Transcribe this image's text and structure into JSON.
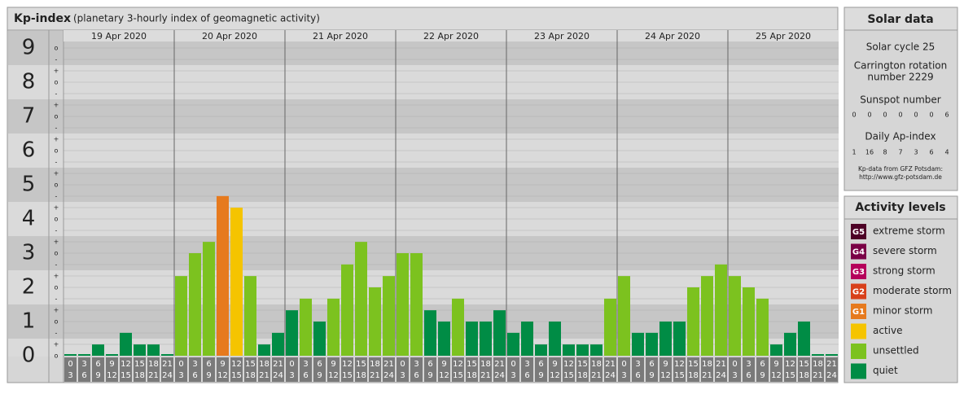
{
  "chart_data": {
    "type": "bar",
    "title": "Kp-index",
    "subtitle": "(planetary 3-hourly index of geomagnetic activity)",
    "ylim": [
      0,
      9
    ],
    "yticks": [
      0,
      1,
      2,
      3,
      4,
      5,
      6,
      7,
      8,
      9
    ],
    "minor_tick_labels": [
      "o",
      "+",
      "-"
    ],
    "hours": [
      [
        "0",
        "3"
      ],
      [
        "3",
        "6"
      ],
      [
        "6",
        "9"
      ],
      [
        "9",
        "12"
      ],
      [
        "12",
        "15"
      ],
      [
        "15",
        "18"
      ],
      [
        "18",
        "21"
      ],
      [
        "21",
        "24"
      ]
    ],
    "days": [
      {
        "date": "19 Apr 2020",
        "values": [
          0,
          0,
          0.33,
          0,
          0.67,
          0.33,
          0.33,
          0
        ],
        "colors": [
          "#008c45",
          "#008c45",
          "#008c45",
          "#008c45",
          "#008c45",
          "#008c45",
          "#008c45",
          "#008c45"
        ]
      },
      {
        "date": "20 Apr 2020",
        "values": [
          2.33,
          3,
          3.33,
          4.67,
          4.33,
          2.33,
          0.33,
          0.67
        ],
        "colors": [
          "#7cc21f",
          "#7cc21f",
          "#7cc21f",
          "#e67a1e",
          "#f5c400",
          "#7cc21f",
          "#008c45",
          "#008c45"
        ]
      },
      {
        "date": "21 Apr 2020",
        "values": [
          1.33,
          1.67,
          1,
          1.67,
          2.67,
          3.33,
          2,
          2.33
        ],
        "colors": [
          "#008c45",
          "#7cc21f",
          "#008c45",
          "#7cc21f",
          "#7cc21f",
          "#7cc21f",
          "#7cc21f",
          "#7cc21f"
        ]
      },
      {
        "date": "22 Apr 2020",
        "values": [
          3,
          3,
          1.33,
          1,
          1.67,
          1,
          1,
          1.33
        ],
        "colors": [
          "#7cc21f",
          "#7cc21f",
          "#008c45",
          "#008c45",
          "#7cc21f",
          "#008c45",
          "#008c45",
          "#008c45"
        ]
      },
      {
        "date": "23 Apr 2020",
        "values": [
          0.67,
          1,
          0.33,
          1,
          0.33,
          0.33,
          0.33,
          1.67
        ],
        "colors": [
          "#008c45",
          "#008c45",
          "#008c45",
          "#008c45",
          "#008c45",
          "#008c45",
          "#008c45",
          "#7cc21f"
        ]
      },
      {
        "date": "24 Apr 2020",
        "values": [
          2.33,
          0.67,
          0.67,
          1,
          1,
          2,
          2.33,
          2.67
        ],
        "colors": [
          "#7cc21f",
          "#008c45",
          "#008c45",
          "#008c45",
          "#008c45",
          "#7cc21f",
          "#7cc21f",
          "#7cc21f"
        ]
      },
      {
        "date": "25 Apr 2020",
        "values": [
          2.33,
          2,
          1.67,
          0.33,
          0.67,
          1,
          0,
          0
        ],
        "colors": [
          "#7cc21f",
          "#7cc21f",
          "#7cc21f",
          "#008c45",
          "#008c45",
          "#008c45",
          "#008c45",
          "#008c45"
        ]
      }
    ]
  },
  "solar_data": {
    "title": "Solar data",
    "solar_cycle": "Solar cycle 25",
    "carrington": [
      "Carrington rotation",
      "number 2229"
    ],
    "sunspot_title": "Sunspot number",
    "sunspot_numbers": [
      0,
      0,
      0,
      0,
      0,
      0,
      6
    ],
    "ap_title": "Daily Ap-index",
    "ap_values": [
      1,
      16,
      8,
      7,
      3,
      6,
      4
    ],
    "source": [
      "Kp-data from GFZ Potsdam:",
      "http://www.gfz-potsdam.de"
    ]
  },
  "activity_levels": {
    "title": "Activity levels",
    "items": [
      {
        "badge": "G5",
        "label": "extreme storm",
        "color": "#4d0026"
      },
      {
        "badge": "G4",
        "label": "severe storm",
        "color": "#7a0046"
      },
      {
        "badge": "G3",
        "label": "strong storm",
        "color": "#b5005b"
      },
      {
        "badge": "G2",
        "label": "moderate storm",
        "color": "#d8401a"
      },
      {
        "badge": "G1",
        "label": "minor storm",
        "color": "#e67a1e"
      },
      {
        "label": "active",
        "color": "#f5c400"
      },
      {
        "label": "unsettled",
        "color": "#7cc21f"
      },
      {
        "label": "quiet",
        "color": "#008c45"
      }
    ]
  }
}
